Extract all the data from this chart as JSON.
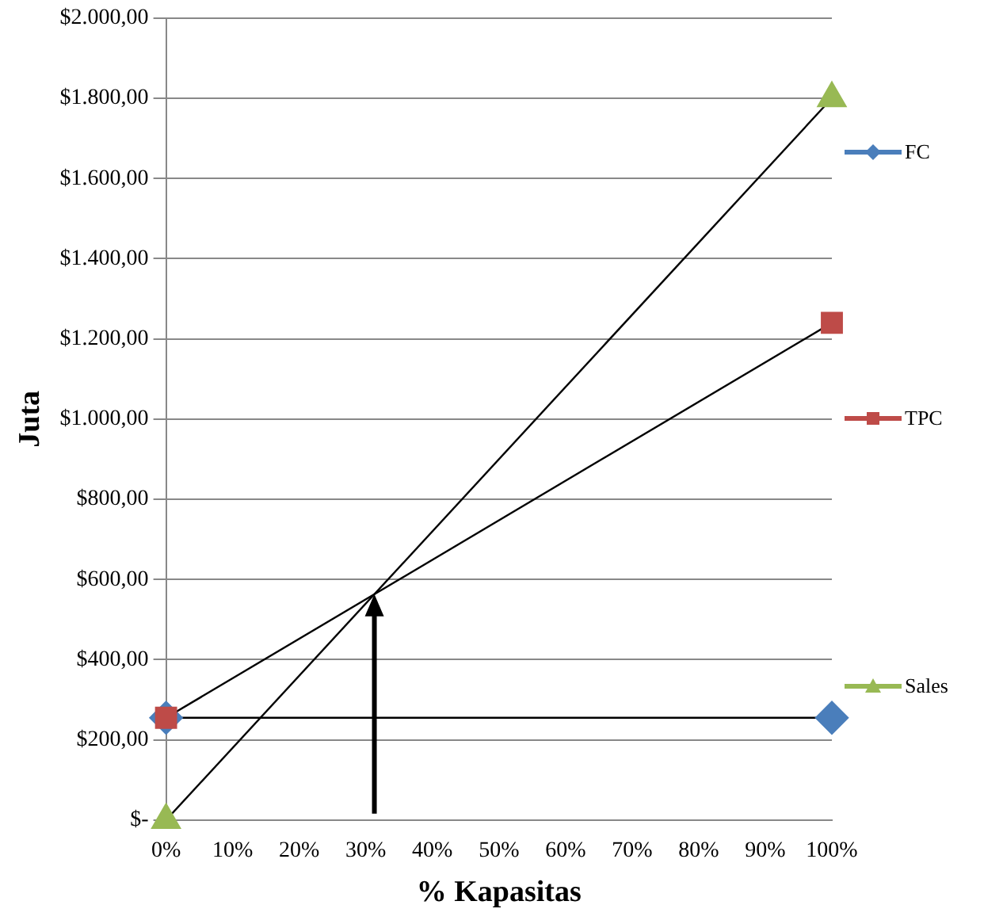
{
  "chart_data": {
    "type": "line",
    "xlabel": "% Kapasitas",
    "ylabel": "Juta",
    "x": [
      0,
      100
    ],
    "series": [
      {
        "name": "FC",
        "color": "#4a7ebb",
        "marker": "diamond",
        "values": [
          255,
          255
        ]
      },
      {
        "name": "TPC",
        "color": "#be4b48",
        "marker": "square",
        "values": [
          255,
          1240
        ]
      },
      {
        "name": "Sales",
        "color": "#98b954",
        "marker": "triangle",
        "values": [
          0,
          1800
        ]
      }
    ],
    "xlim": [
      0,
      100
    ],
    "xticks": [
      {
        "value": 0,
        "label": "0%"
      },
      {
        "value": 10,
        "label": "10%"
      },
      {
        "value": 20,
        "label": "20%"
      },
      {
        "value": 30,
        "label": "30%"
      },
      {
        "value": 40,
        "label": "40%"
      },
      {
        "value": 50,
        "label": "50%"
      },
      {
        "value": 60,
        "label": "60%"
      },
      {
        "value": 70,
        "label": "70%"
      },
      {
        "value": 80,
        "label": "80%"
      },
      {
        "value": 90,
        "label": "90%"
      },
      {
        "value": 100,
        "label": "100%"
      }
    ],
    "ylim": [
      0,
      2000
    ],
    "yticks": [
      {
        "value": 0,
        "label": "$-"
      },
      {
        "value": 200,
        "label": "$200,00"
      },
      {
        "value": 400,
        "label": "$400,00"
      },
      {
        "value": 600,
        "label": "$600,00"
      },
      {
        "value": 800,
        "label": "$800,00"
      },
      {
        "value": 1000,
        "label": "$1.000,00"
      },
      {
        "value": 1200,
        "label": "$1.200,00"
      },
      {
        "value": 1400,
        "label": "$1.400,00"
      },
      {
        "value": 1600,
        "label": "$1.600,00"
      },
      {
        "value": 1800,
        "label": "$1.800,00"
      },
      {
        "value": 2000,
        "label": "$2.000,00"
      }
    ],
    "grid": "y",
    "legend": "right",
    "line_style": "solid"
  }
}
